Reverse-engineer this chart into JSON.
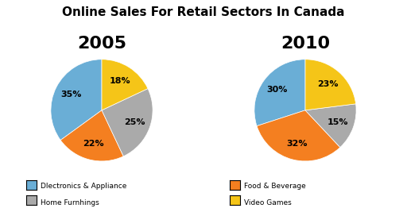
{
  "title": "Online Sales For Retail Sectors In Canada",
  "title_fontsize": 11,
  "chart1_year": "2005",
  "chart2_year": "2010",
  "year_fontsize": 16,
  "colors": [
    "#6aaed6",
    "#f47f20",
    "#aaaaaa",
    "#f5c518"
  ],
  "values_2005": [
    35,
    22,
    25,
    18
  ],
  "values_2010": [
    30,
    32,
    15,
    23
  ],
  "legend_labels": [
    "Dlectronics & Appliance",
    "Home Furnhings",
    "Food & Beverage",
    "Video Games"
  ],
  "legend_colors": [
    "#6aaed6",
    "#aaaaaa",
    "#f47f20",
    "#f5c518"
  ],
  "pct_fontsize": 8,
  "background_color": "#ffffff",
  "startangle": 90
}
